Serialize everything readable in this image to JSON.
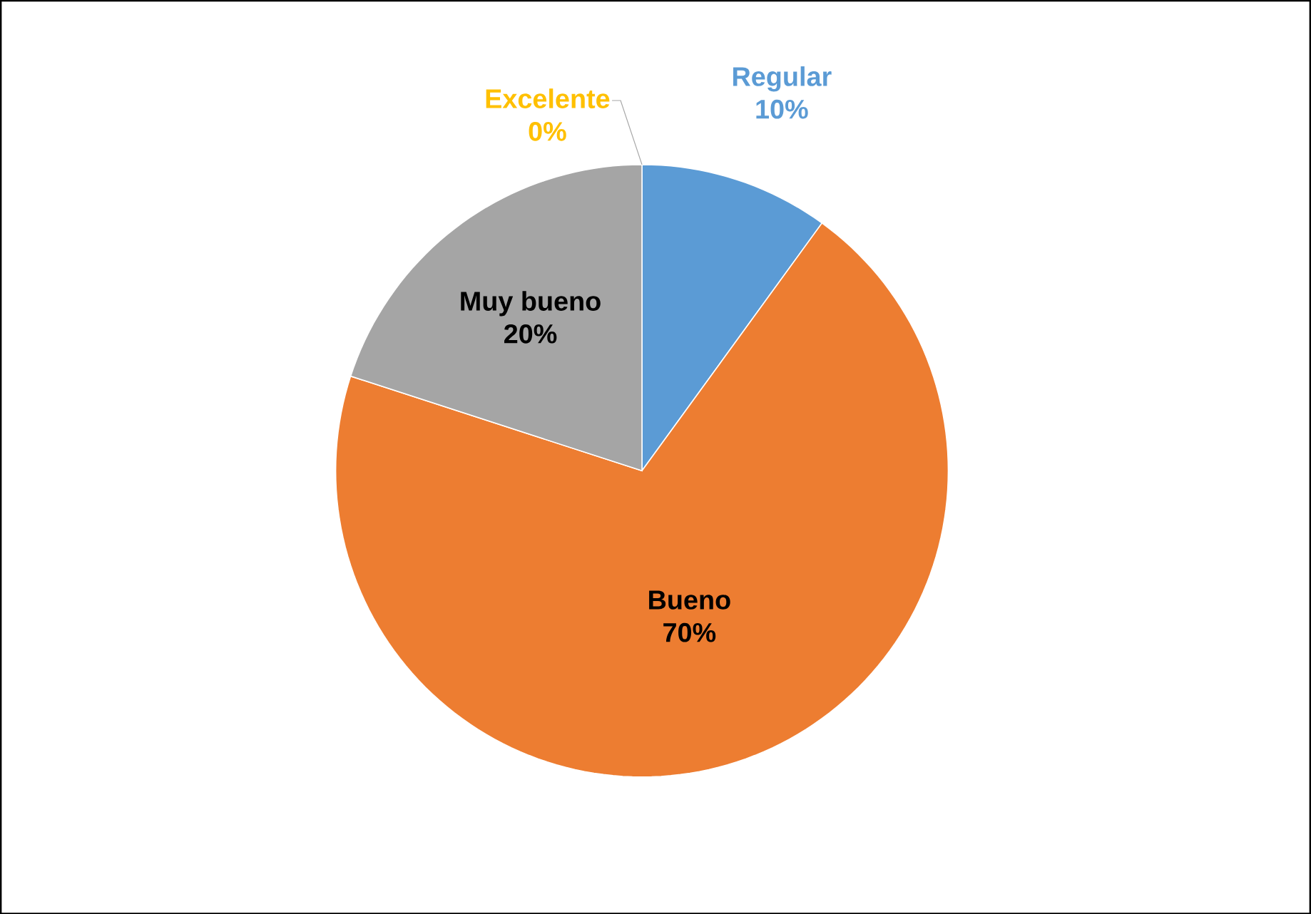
{
  "chart_data": {
    "type": "pie",
    "categories": [
      "Regular",
      "Bueno",
      "Muy bueno",
      "Excelente"
    ],
    "values": [
      10,
      70,
      20,
      0
    ],
    "value_labels": [
      "10%",
      "70%",
      "20%",
      "0%"
    ],
    "colors": [
      "#5b9bd5",
      "#ed7d31",
      "#a5a5a5",
      "#ffc000"
    ]
  }
}
